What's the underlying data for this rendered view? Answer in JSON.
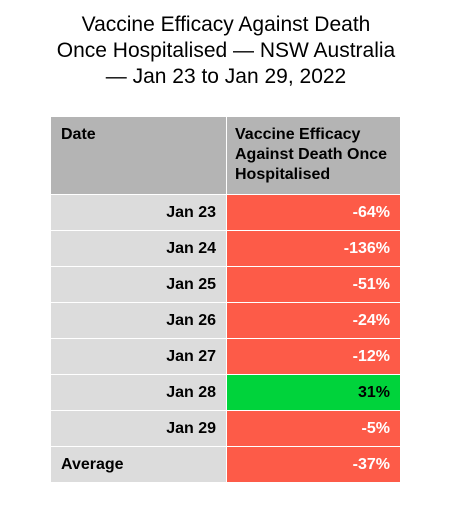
{
  "title_lines": [
    "Vaccine Efficacy Against Death",
    "Once Hospitalised — NSW Australia",
    "— Jan 23 to Jan 29, 2022"
  ],
  "table": {
    "headers": [
      "Date",
      "Vaccine Efficacy Against Death Once Hospitalised"
    ]
  },
  "chart_data": {
    "type": "table",
    "title": "Vaccine Efficacy Against Death Once Hospitalised — NSW Australia — Jan 23 to Jan 29, 2022",
    "columns": [
      "Date",
      "Vaccine Efficacy Against Death Once Hospitalised"
    ],
    "rows": [
      {
        "date": "Jan 23",
        "value": "-64%"
      },
      {
        "date": "Jan 24",
        "value": "-136%"
      },
      {
        "date": "Jan 25",
        "value": "-51%"
      },
      {
        "date": "Jan 26",
        "value": "-24%"
      },
      {
        "date": "Jan 27",
        "value": "-12%"
      },
      {
        "date": "Jan 28",
        "value": "31%"
      },
      {
        "date": "Jan 29",
        "value": "-5%"
      }
    ],
    "values": [
      -64,
      -136,
      -51,
      -24,
      -12,
      31,
      -5
    ],
    "summary": {
      "label": "Average",
      "value": "-37%"
    }
  },
  "colors": {
    "negative": "#fd5b48",
    "positive": "#00d33b",
    "header_bg": "#b4b4b4",
    "date_bg": "#dcdcdc"
  }
}
